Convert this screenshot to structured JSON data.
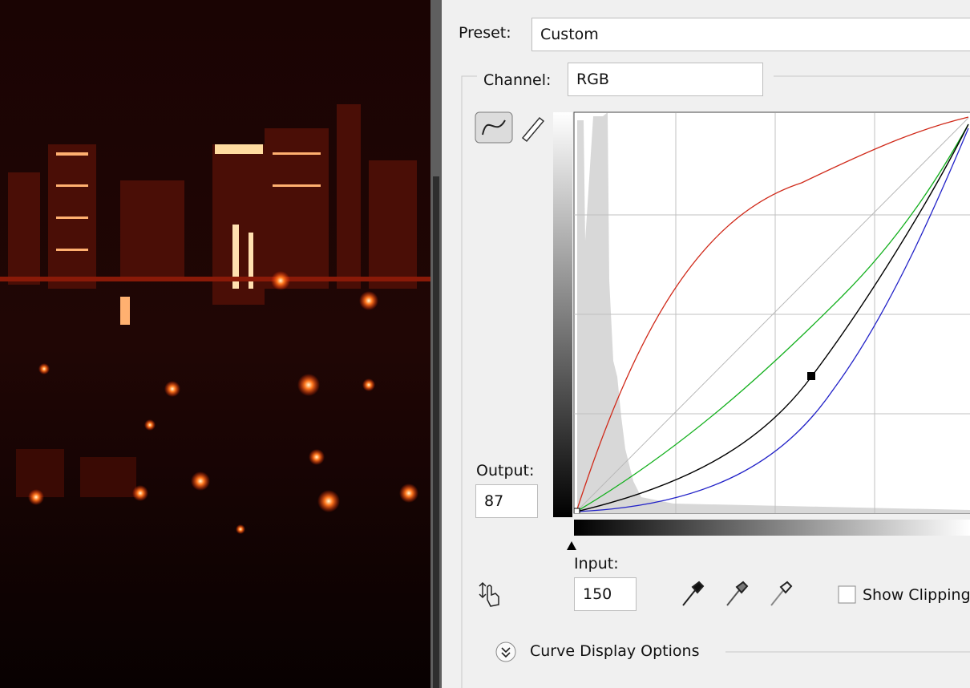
{
  "preset": {
    "label": "Preset:",
    "value": "Custom"
  },
  "channel": {
    "label": "Channel:",
    "value": "RGB"
  },
  "output": {
    "label": "Output:",
    "value": "87"
  },
  "input": {
    "label": "Input:",
    "value": "150"
  },
  "show_clipping": "Show Clipping",
  "curve_display_options": "Curve Display Options"
}
